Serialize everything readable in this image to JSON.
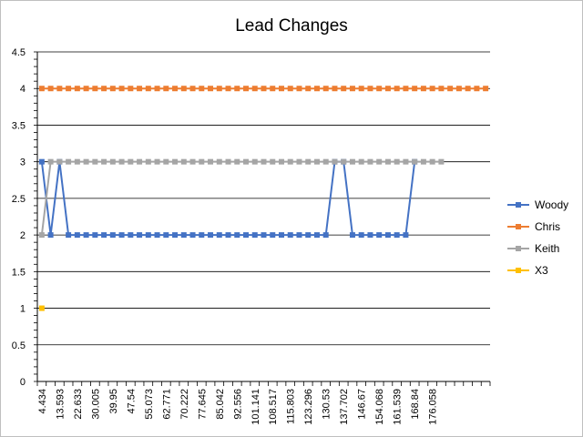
{
  "chart_data": {
    "type": "line",
    "title": "Lead Changes",
    "xlabel": "",
    "ylabel": "",
    "ylim": [
      0,
      4.5
    ],
    "y_ticks": [
      0,
      0.5,
      1,
      1.5,
      2,
      2.5,
      3,
      3.5,
      4,
      4.5
    ],
    "y_tick_labels": [
      "0",
      "0.5",
      "1",
      "1.5",
      "2",
      "2.5",
      "3",
      "3.5",
      "4",
      "4.5"
    ],
    "grid": true,
    "legend_position": "right",
    "x_tick_labels": [
      "4.434",
      "13.593",
      "22.633",
      "30.005",
      "39.95",
      "47.54",
      "55.073",
      "62.771",
      "70.222",
      "77.645",
      "85.042",
      "92.556",
      "101.141",
      "108.517",
      "115.803",
      "123.296",
      "130.53",
      "137.702",
      "146.67",
      "154.068",
      "161.539",
      "168.84",
      "176.058"
    ],
    "series": [
      {
        "name": "Woody",
        "color": "#4472C4",
        "values": [
          3,
          2,
          3,
          2,
          2,
          2,
          2,
          2,
          2,
          2,
          2,
          2,
          2,
          2,
          2,
          2,
          2,
          2,
          2,
          2,
          2,
          2,
          2,
          2,
          2,
          2,
          2,
          2,
          2,
          2,
          2,
          2,
          2,
          3,
          3,
          2,
          2,
          2,
          2,
          2,
          2,
          2,
          3
        ]
      },
      {
        "name": "Chris",
        "color": "#ED7D31",
        "values": [
          4,
          4,
          4,
          4,
          4,
          4,
          4,
          4,
          4,
          4,
          4,
          4,
          4,
          4,
          4,
          4,
          4,
          4,
          4,
          4,
          4,
          4,
          4,
          4,
          4,
          4,
          4,
          4,
          4,
          4,
          4,
          4,
          4,
          4,
          4,
          4,
          4,
          4,
          4,
          4,
          4,
          4,
          4,
          4,
          4,
          4,
          4,
          4,
          4,
          4,
          4
        ]
      },
      {
        "name": "Keith",
        "color": "#A5A5A5",
        "values": [
          2,
          3,
          3,
          3,
          3,
          3,
          3,
          3,
          3,
          3,
          3,
          3,
          3,
          3,
          3,
          3,
          3,
          3,
          3,
          3,
          3,
          3,
          3,
          3,
          3,
          3,
          3,
          3,
          3,
          3,
          3,
          3,
          3,
          3,
          3,
          3,
          3,
          3,
          3,
          3,
          3,
          3,
          3,
          3,
          3,
          3
        ]
      },
      {
        "name": "X3",
        "color": "#FFC000",
        "values": [
          1
        ]
      }
    ]
  }
}
